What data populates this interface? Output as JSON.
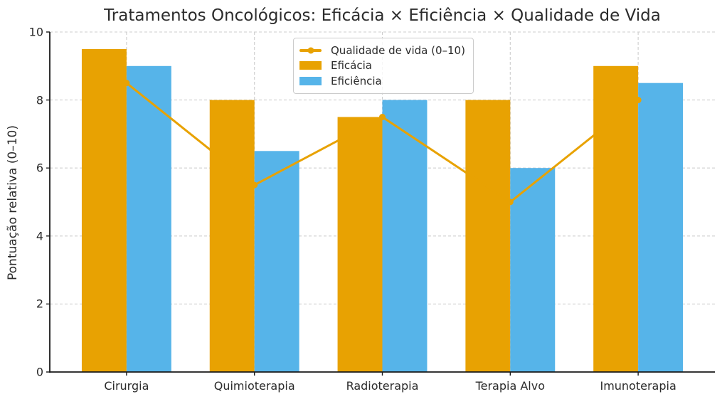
{
  "chart_data": {
    "type": "bar",
    "subtype": "grouped bars with line overlay",
    "title": "Tratamentos Oncológicos: Eficácia × Eficiência × Qualidade de Vida",
    "ylabel": "Pontuação relativa (0–10)",
    "xlabel": "",
    "categories": [
      "Cirurgia",
      "Quimioterapia",
      "Radioterapia",
      "Terapia Alvo",
      "Imunoterapia"
    ],
    "series": [
      {
        "name": "Qualidade de vida (0–10)",
        "type": "line",
        "color": "#E8A202",
        "marker": "circle",
        "values": [
          8.5,
          5.5,
          7.5,
          5.0,
          8.0
        ]
      },
      {
        "name": "Eficácia",
        "type": "bar",
        "color": "#E8A202",
        "values": [
          9.5,
          8.0,
          7.5,
          8.0,
          9.0
        ]
      },
      {
        "name": "Eficiência",
        "type": "bar",
        "color": "#56B4E9",
        "values": [
          9.0,
          6.5,
          8.0,
          6.0,
          8.5
        ]
      }
    ],
    "ylim": [
      0,
      10
    ],
    "yticks": [
      0,
      2,
      4,
      6,
      8,
      10
    ],
    "grid": "dashed, horizontal and vertical, below bars",
    "legend_position": "upper center",
    "bar_width_fraction": 0.35
  },
  "colors": {
    "orange": "#E8A202",
    "blue": "#56B4E9",
    "grid": "#cdcdcd",
    "axis": "#1a1a1a",
    "text": "#2b2b2b",
    "legend_border": "#cccccc",
    "background": "#ffffff"
  }
}
